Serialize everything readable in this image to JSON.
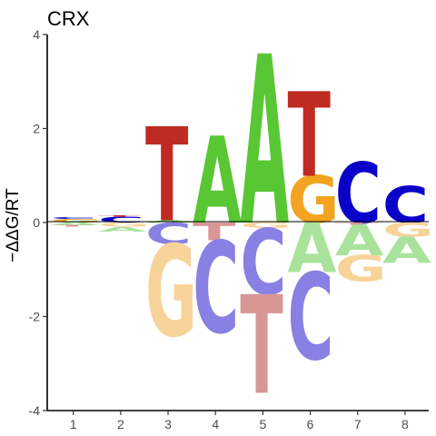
{
  "chart_data": {
    "type": "sequence_logo",
    "title": "CRX",
    "ylabel": "−ΔΔG/RT",
    "xlabel": "",
    "ylim": [
      -4,
      4
    ],
    "yticks": [
      "-4",
      "-2",
      "0",
      "2",
      "4"
    ],
    "ytick_values": [
      -4,
      -2,
      0,
      2,
      4
    ],
    "positions": [
      "1",
      "2",
      "3",
      "4",
      "5",
      "6",
      "7",
      "8"
    ],
    "colors": {
      "A": "#58c733",
      "C": "#0b00c8",
      "G": "#f2a31f",
      "T": "#bf2b22",
      "A_faded": "#a9e39b",
      "C_faded": "#8880e2",
      "G_faded": "#f7d39a",
      "T_faded": "#d89694"
    },
    "columns": [
      {
        "position": 1,
        "above": [
          {
            "letter": "G",
            "value": 0.08
          },
          {
            "letter": "C",
            "value": 0.03
          }
        ],
        "below": [
          {
            "letter": "A",
            "value": 0.06
          },
          {
            "letter": "T",
            "value": 0.03
          }
        ]
      },
      {
        "position": 2,
        "above": [
          {
            "letter": "C",
            "value": 0.13
          },
          {
            "letter": "T",
            "value": 0.02
          }
        ],
        "below": [
          {
            "letter": "G",
            "value": 0.09
          },
          {
            "letter": "A",
            "value": 0.1
          }
        ]
      },
      {
        "position": 3,
        "above": [
          {
            "letter": "A",
            "value": 0.05
          },
          {
            "letter": "T",
            "value": 2.0
          }
        ],
        "below": [
          {
            "letter": "C",
            "value": 0.45
          },
          {
            "letter": "G",
            "value": 1.95
          }
        ]
      },
      {
        "position": 4,
        "above": [
          {
            "letter": "A",
            "value": 1.85
          }
        ],
        "below": [
          {
            "letter": "T",
            "value": 0.38
          },
          {
            "letter": "C",
            "value": 1.95
          }
        ]
      },
      {
        "position": 5,
        "above": [
          {
            "letter": "A",
            "value": 3.6
          }
        ],
        "below": [
          {
            "letter": "G",
            "value": 0.12
          },
          {
            "letter": "C",
            "value": 1.4
          },
          {
            "letter": "T",
            "value": 2.1
          }
        ]
      },
      {
        "position": 6,
        "above": [
          {
            "letter": "G",
            "value": 1.0
          },
          {
            "letter": "T",
            "value": 1.8
          }
        ],
        "below": [
          {
            "letter": "A",
            "value": 1.05
          },
          {
            "letter": "C",
            "value": 1.85
          }
        ]
      },
      {
        "position": 7,
        "above": [
          {
            "letter": "C",
            "value": 1.3
          }
        ],
        "below": [
          {
            "letter": "T",
            "value": 0.05
          },
          {
            "letter": "A",
            "value": 0.65
          },
          {
            "letter": "G",
            "value": 0.55
          }
        ]
      },
      {
        "position": 8,
        "above": [
          {
            "letter": "C",
            "value": 0.78
          }
        ],
        "below": [
          {
            "letter": "G",
            "value": 0.3
          },
          {
            "letter": "A",
            "value": 0.55
          }
        ]
      }
    ]
  }
}
